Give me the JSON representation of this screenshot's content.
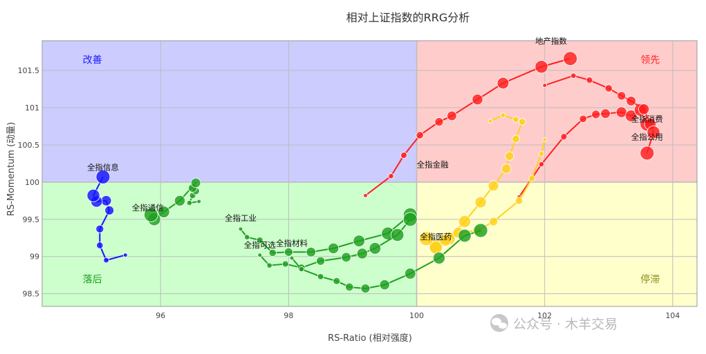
{
  "chart_data": {
    "type": "scatter",
    "title": "相对上证指数的RRG分析",
    "xlabel": "RS-Ratio (相对强度)",
    "ylabel": "RS-Momentum (动量)",
    "xlim": [
      94.15,
      104.38
    ],
    "ylim": [
      98.33,
      101.9
    ],
    "x_ticks": [
      96,
      98,
      100,
      102,
      104
    ],
    "y_ticks": [
      98.5,
      99,
      99.5,
      100,
      100.5,
      101,
      101.5
    ],
    "grid": true,
    "quadrants": [
      {
        "name": "改善",
        "color": "#ccccff",
        "label_color": "#1a1aff"
      },
      {
        "name": "领先",
        "color": "#ffcccc",
        "label_color": "#ff2222"
      },
      {
        "name": "落后",
        "color": "#ccffcc",
        "label_color": "#1f9f1f"
      },
      {
        "name": "停滞",
        "color": "#ffffcc",
        "label_color": "#8c8c1a"
      }
    ],
    "series": [
      {
        "name": "地产指数",
        "color": "#ff1f1f",
        "points": [
          [
            99.2,
            99.82
          ],
          [
            99.6,
            100.08
          ],
          [
            99.8,
            100.36
          ],
          [
            100.05,
            100.63
          ],
          [
            100.35,
            100.81
          ],
          [
            100.55,
            100.89
          ],
          [
            100.95,
            101.11
          ],
          [
            101.35,
            101.33
          ],
          [
            101.95,
            101.55
          ],
          [
            102.4,
            101.66
          ]
        ]
      },
      {
        "name": "全指消费",
        "color": "#ff1f1f",
        "points": [
          [
            101.6,
            99.8
          ],
          [
            101.95,
            100.24
          ],
          [
            102.3,
            100.61
          ],
          [
            102.6,
            100.85
          ],
          [
            102.8,
            100.91
          ],
          [
            102.95,
            100.92
          ],
          [
            103.2,
            100.94
          ],
          [
            103.35,
            100.89
          ],
          [
            103.5,
            100.97
          ],
          [
            103.6,
            100.78
          ]
        ]
      },
      {
        "name": "全指公用",
        "color": "#ff1f1f",
        "points": [
          [
            102.0,
            101.3
          ],
          [
            102.45,
            101.43
          ],
          [
            102.7,
            101.37
          ],
          [
            103.0,
            101.26
          ],
          [
            103.2,
            101.16
          ],
          [
            103.35,
            101.09
          ],
          [
            103.55,
            100.98
          ],
          [
            103.65,
            100.78
          ],
          [
            103.7,
            100.67
          ],
          [
            103.6,
            100.39
          ]
        ]
      },
      {
        "name": "全指金融",
        "color": "#ffd11a",
        "points": [
          [
            101.15,
            100.82
          ],
          [
            101.35,
            100.9
          ],
          [
            101.55,
            100.84
          ],
          [
            101.65,
            100.81
          ],
          [
            101.55,
            100.58
          ],
          [
            101.45,
            100.35
          ],
          [
            101.4,
            100.18
          ],
          [
            101.2,
            99.95
          ],
          [
            101.0,
            99.73
          ],
          [
            100.75,
            99.47
          ],
          [
            100.5,
            99.24
          ],
          [
            100.3,
            99.14
          ]
        ]
      },
      {
        "name": "全指医药",
        "color": "#ffd11a",
        "points": [
          [
            102.0,
            100.57
          ],
          [
            101.95,
            100.38
          ],
          [
            101.8,
            100.05
          ],
          [
            101.6,
            99.75
          ],
          [
            101.2,
            99.47
          ],
          [
            100.95,
            99.35
          ],
          [
            100.65,
            99.32
          ],
          [
            100.45,
            99.22
          ],
          [
            100.3,
            99.12
          ],
          [
            100.15,
            99.24
          ]
        ]
      },
      {
        "name": "全指信息",
        "color": "#1414ff",
        "points": [
          [
            95.45,
            99.02
          ],
          [
            95.15,
            98.95
          ],
          [
            95.05,
            99.15
          ],
          [
            95.05,
            99.37
          ],
          [
            95.2,
            99.62
          ],
          [
            95.15,
            99.75
          ],
          [
            95.0,
            99.74
          ],
          [
            94.95,
            99.82
          ],
          [
            95.1,
            100.07
          ]
        ]
      },
      {
        "name": "全指通信",
        "color": "#1f9f1f",
        "points": [
          [
            96.6,
            99.74
          ],
          [
            96.45,
            99.72
          ],
          [
            96.5,
            99.82
          ],
          [
            96.55,
            99.88
          ],
          [
            96.5,
            99.92
          ],
          [
            96.55,
            99.99
          ],
          [
            96.3,
            99.75
          ],
          [
            96.05,
            99.6
          ],
          [
            95.9,
            99.5
          ],
          [
            95.85,
            99.56
          ]
        ]
      },
      {
        "name": "全指工业",
        "color": "#1f9f1f",
        "points": [
          [
            97.25,
            99.37
          ],
          [
            97.35,
            99.26
          ],
          [
            97.55,
            99.22
          ],
          [
            97.75,
            99.05
          ],
          [
            98.0,
            99.06
          ],
          [
            98.35,
            99.06
          ],
          [
            98.7,
            99.11
          ],
          [
            99.1,
            99.21
          ],
          [
            99.55,
            99.31
          ],
          [
            99.9,
            99.56
          ]
        ]
      },
      {
        "name": "全指可选",
        "color": "#1f9f1f",
        "points": [
          [
            97.55,
            99.02
          ],
          [
            97.7,
            98.88
          ],
          [
            97.95,
            98.9
          ],
          [
            98.2,
            98.85
          ],
          [
            98.5,
            98.94
          ],
          [
            98.9,
            98.99
          ],
          [
            99.15,
            99.04
          ],
          [
            99.35,
            99.11
          ],
          [
            99.7,
            99.29
          ],
          [
            99.9,
            99.5
          ]
        ]
      },
      {
        "name": "全指材料",
        "color": "#1f9f1f",
        "points": [
          [
            98.05,
            98.98
          ],
          [
            98.2,
            98.83
          ],
          [
            98.5,
            98.73
          ],
          [
            98.75,
            98.67
          ],
          [
            98.95,
            98.59
          ],
          [
            99.2,
            98.57
          ],
          [
            99.5,
            98.62
          ],
          [
            99.9,
            98.77
          ],
          [
            100.35,
            98.98
          ],
          [
            100.75,
            99.28
          ],
          [
            101.0,
            99.35
          ]
        ]
      }
    ],
    "labels": [
      {
        "text": "地产指数",
        "x": 102.1,
        "y": 101.86
      },
      {
        "text": "全指消费",
        "x": 103.6,
        "y": 100.81
      },
      {
        "text": "全指公用",
        "x": 103.6,
        "y": 100.57
      },
      {
        "text": "全指金融",
        "x": 100.25,
        "y": 100.2
      },
      {
        "text": "全指医药",
        "x": 100.3,
        "y": 99.23
      },
      {
        "text": "全指信息",
        "x": 95.1,
        "y": 100.16
      },
      {
        "text": "全指通信",
        "x": 95.8,
        "y": 99.62
      },
      {
        "text": "全指工业",
        "x": 97.25,
        "y": 99.48
      },
      {
        "text": "全指可选",
        "x": 97.55,
        "y": 99.12
      },
      {
        "text": "全指材料",
        "x": 98.05,
        "y": 99.14
      }
    ]
  },
  "watermark": {
    "text": "公众号 · 木羊交易",
    "icon": "wechat-icon"
  }
}
